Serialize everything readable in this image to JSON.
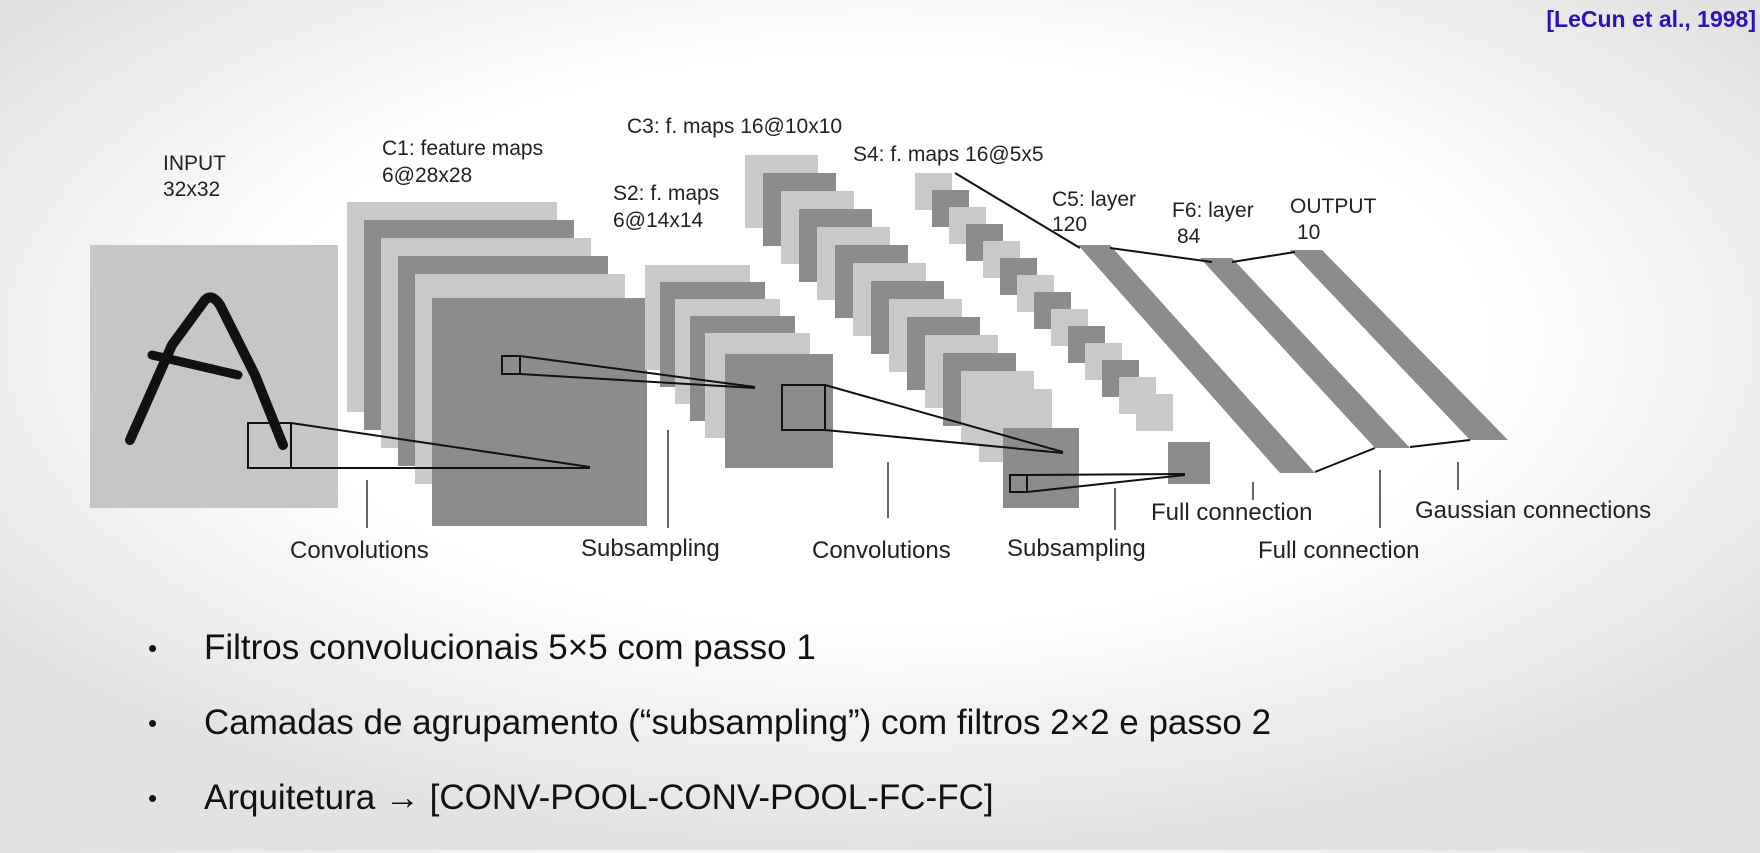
{
  "citation": "[LeCun et al., 1998]",
  "diagram": {
    "layers": {
      "input": {
        "name": "INPUT",
        "size": "32x32"
      },
      "c1": {
        "name": "C1: feature maps",
        "size": "6@28x28"
      },
      "s2": {
        "name": "S2: f. maps",
        "size": "6@14x14"
      },
      "c3": {
        "name": "C3: f. maps 16@10x10"
      },
      "s4": {
        "name": "S4: f. maps 16@5x5"
      },
      "c5": {
        "name": "C5: layer",
        "size": "120"
      },
      "f6": {
        "name": "F6: layer",
        "size": "84"
      },
      "output": {
        "name": "OUTPUT",
        "size": "10"
      }
    },
    "operations": {
      "conv1": "Convolutions",
      "sub1": "Subsampling",
      "conv2": "Convolutions",
      "sub2": "Subsampling",
      "full1": "Full connection",
      "full2": "Full connection",
      "gauss": "Gaussian connections"
    }
  },
  "bullets": [
    "Filtros convolucionais 5×5 com passo 1",
    "Camadas de agrupamento (“subsampling”) com filtros 2×2 e passo 2",
    "Arquitetura → [CONV-POOL-CONV-POOL-FC-FC]"
  ],
  "colors": {
    "citation": "#2a14b8",
    "map_light": "#c8c8c8",
    "map_dark": "#8a8a8a"
  }
}
